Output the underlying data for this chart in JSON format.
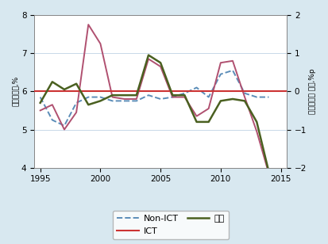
{
  "years": [
    1995,
    1996,
    1997,
    1998,
    1999,
    2000,
    2001,
    2002,
    2003,
    2004,
    2005,
    2006,
    2007,
    2008,
    2009,
    2010,
    2011,
    2012,
    2013,
    2014
  ],
  "non_ict": [
    5.85,
    5.25,
    5.1,
    5.7,
    5.85,
    5.85,
    5.75,
    5.75,
    5.75,
    5.9,
    5.8,
    5.85,
    5.95,
    6.1,
    5.85,
    6.45,
    6.55,
    5.95,
    5.85,
    5.85
  ],
  "ict": [
    5.5,
    5.65,
    5.0,
    5.45,
    7.75,
    7.25,
    5.85,
    5.8,
    5.8,
    6.85,
    6.65,
    5.85,
    5.85,
    5.35,
    5.55,
    6.75,
    6.8,
    5.85,
    4.95,
    3.85
  ],
  "diff": [
    -0.3,
    0.25,
    0.05,
    0.2,
    -0.35,
    -0.25,
    -0.1,
    -0.1,
    -0.1,
    0.95,
    0.75,
    -0.1,
    -0.1,
    -0.8,
    -0.8,
    -0.25,
    -0.2,
    -0.25,
    -0.8,
    -2.1
  ],
  "non_ict_color": "#5b8db8",
  "ict_color": "#b05070",
  "diff_color": "#4a6020",
  "ict_legend_color": "#cc4444",
  "ylim_left": [
    4,
    8
  ],
  "ylim_right": [
    -2,
    2
  ],
  "xlim": [
    1994.5,
    2015.5
  ],
  "xticks": [
    1995,
    2000,
    2005,
    2010,
    2015
  ],
  "yticks_left": [
    4,
    5,
    6,
    7,
    8
  ],
  "yticks_right": [
    -2,
    -1,
    0,
    1,
    2
  ],
  "ylabel_left": "영업이익률,%",
  "ylabel_right": "영업이익률 차이,%p",
  "background_color": "#d8e8f0",
  "plot_bg_color": "#ffffff",
  "grid_color": "#c8d8e8",
  "legend_labels": [
    "Non-ICT",
    "ICT",
    "차이"
  ],
  "hline_color": "#cc3333",
  "hline_y": 0
}
